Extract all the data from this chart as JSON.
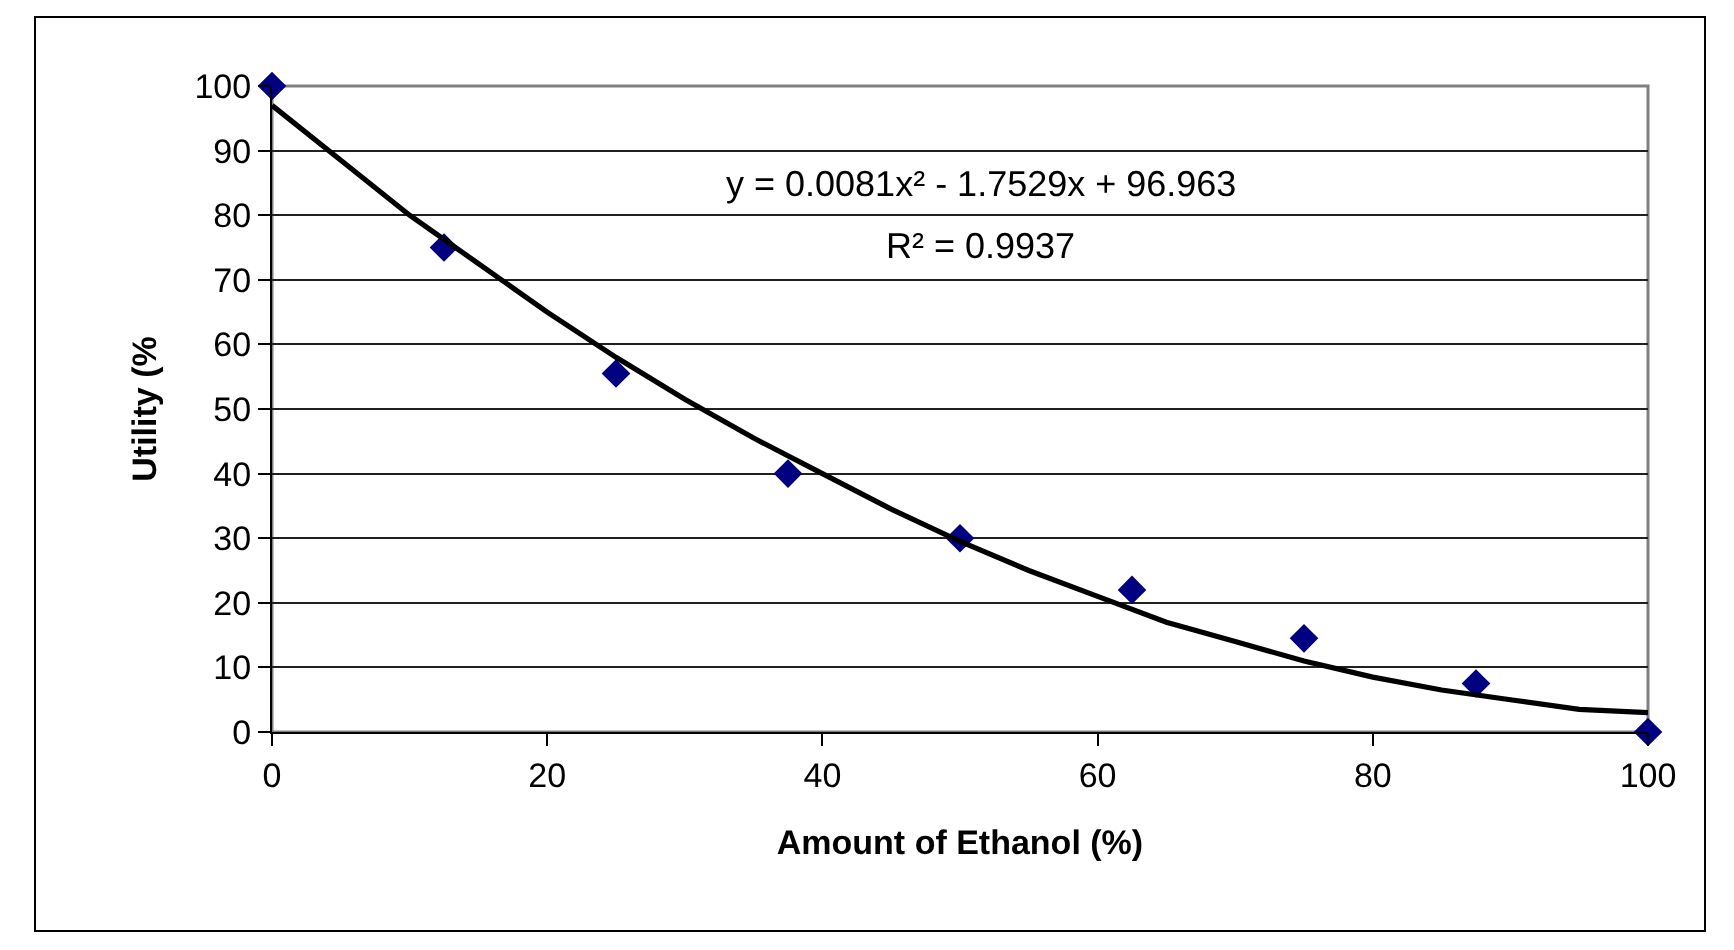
{
  "chart_data": {
    "type": "scatter",
    "xlabel": "Amount of Ethanol (%)",
    "ylabel": "Utility (%",
    "x": [
      0,
      12.5,
      25,
      37.5,
      50,
      62.5,
      75,
      87.5,
      100
    ],
    "series": [
      {
        "color": "#000080",
        "marker": "diamond",
        "values": [
          100,
          75,
          55.5,
          40,
          30,
          22,
          14.5,
          7.5,
          0
        ]
      },
      {
        "type": "line",
        "color": "#000000",
        "marker": "none",
        "x": [
          0,
          5,
          10,
          15,
          20,
          25,
          30,
          35,
          40,
          45,
          50,
          55,
          60,
          65,
          70,
          75,
          80,
          85,
          90,
          95,
          100
        ],
        "values": [
          97,
          88.5,
          80,
          72.5,
          65,
          58,
          51.5,
          45.5,
          40,
          34.5,
          29.5,
          25,
          21,
          17,
          14,
          11,
          8.5,
          6.5,
          5,
          3.5,
          3
        ]
      }
    ],
    "xlim": [
      0,
      100
    ],
    "ylim": [
      0,
      100
    ],
    "xticks": [
      0,
      20,
      40,
      60,
      80,
      100
    ],
    "yticks": [
      0,
      10,
      20,
      30,
      40,
      50,
      60,
      70,
      80,
      90,
      100
    ],
    "grid": "y",
    "annotations": [
      "y = 0.0081x² - 1.7529x + 96.963",
      "R² = 0.9937"
    ]
  }
}
